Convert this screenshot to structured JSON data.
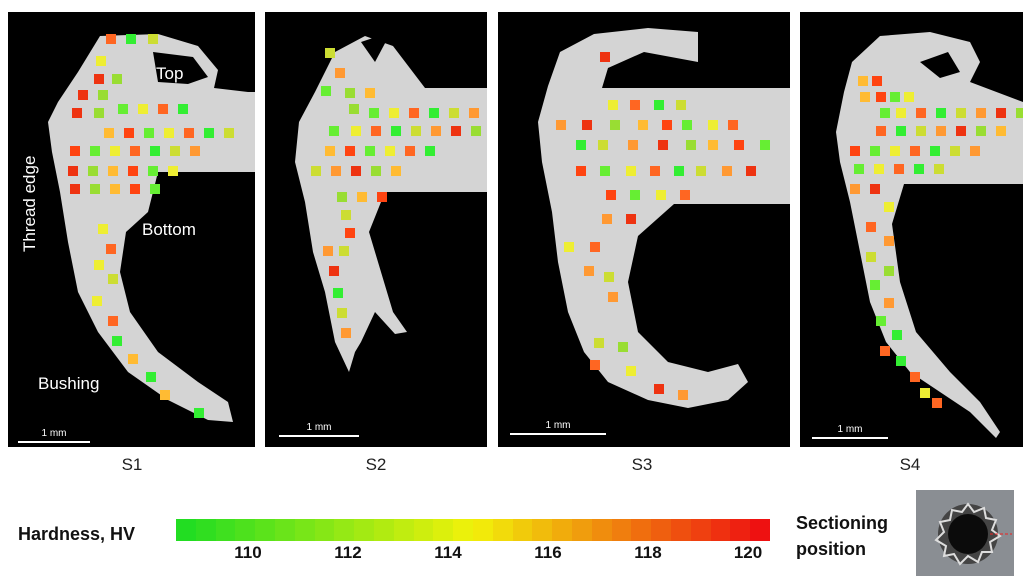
{
  "panels": [
    {
      "label": "S1",
      "scale_label": "1 mm",
      "annotations": {
        "top": "Top",
        "bottom": "Bottom",
        "bushing": "Bushing",
        "thread_edge": "Thread edge"
      }
    },
    {
      "label": "S2",
      "scale_label": "1 mm"
    },
    {
      "label": "S3",
      "scale_label": "1 mm"
    },
    {
      "label": "S4",
      "scale_label": "1 mm"
    }
  ],
  "legend": {
    "title": "Hardness, HV",
    "ticks": [
      "110",
      "112",
      "114",
      "116",
      "118",
      "120"
    ],
    "min_color": "#22dd22",
    "mid_color": "#f2f20a",
    "max_color": "#ee1111"
  },
  "sectioning": {
    "line1": "Sectioning",
    "line2": "position"
  },
  "colors": {
    "background": "#000000",
    "specimen": "#d8d8d8"
  }
}
